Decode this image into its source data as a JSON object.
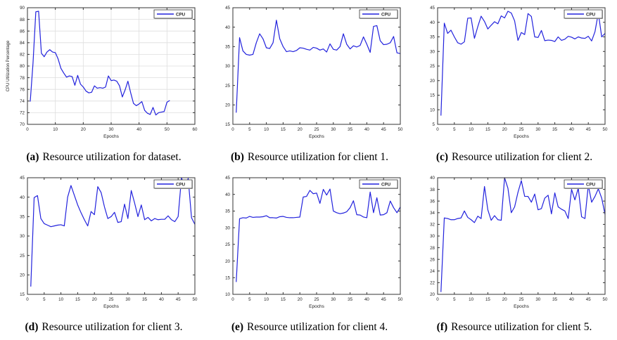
{
  "figure": {
    "legend_label": "CPU",
    "line_color": "#2222DD",
    "axis_color": "#333333",
    "grid_color": "#dedede"
  },
  "chart_data": [
    {
      "type": "line",
      "id": "a",
      "caption_label": "(a)",
      "caption_text": "Resource utilization for dataset.",
      "xlabel": "Epochs",
      "ylabel": "CPU Utilization Percentage",
      "legend": [
        "CPU"
      ],
      "legend_position": "top-right",
      "grid": true,
      "xlim": [
        0,
        60
      ],
      "ylim": [
        70,
        90
      ],
      "xticks": [
        0,
        10,
        20,
        30,
        40,
        50,
        60
      ],
      "yticks": [
        70,
        72,
        74,
        76,
        78,
        80,
        82,
        84,
        86,
        88,
        90
      ],
      "line_color": "#2222DD",
      "series": [
        {
          "name": "CPU",
          "x": [
            1,
            2,
            3,
            4,
            5,
            6,
            7,
            8,
            9,
            10,
            11,
            12,
            13,
            14,
            15,
            16,
            17,
            18,
            19,
            20,
            21,
            22,
            23,
            24,
            25,
            26,
            27,
            28,
            29,
            30,
            31,
            32,
            33,
            34,
            35,
            36,
            37,
            38,
            39,
            40,
            41,
            42,
            43,
            44,
            45,
            46,
            47,
            48,
            49,
            50,
            51
          ],
          "y": [
            73.9,
            80.5,
            89.3,
            89.4,
            82.2,
            81.6,
            82.4,
            82.8,
            82.4,
            82.3,
            81.2,
            79.6,
            78.8,
            78.1,
            78.3,
            78.2,
            76.7,
            78.4,
            76.9,
            76.4,
            75.7,
            75.4,
            75.5,
            76.6,
            76.2,
            76.3,
            76.2,
            76.4,
            78.3,
            77.5,
            77.6,
            77.4,
            76.6,
            74.7,
            75.9,
            77.4,
            75.4,
            73.6,
            73.2,
            73.5,
            73.9,
            72.4,
            71.9,
            71.7,
            72.9,
            71.6,
            72.0,
            72.1,
            72.2,
            73.8,
            74.1
          ]
        }
      ]
    },
    {
      "type": "line",
      "id": "b",
      "caption_label": "(b)",
      "caption_text": "Resource utilization for client 1.",
      "xlabel": "Epochs",
      "ylabel": "",
      "legend": [
        "CPU"
      ],
      "legend_position": "top-right",
      "grid": false,
      "xlim": [
        0,
        50
      ],
      "ylim": [
        15,
        45
      ],
      "xticks": [
        0,
        5,
        10,
        15,
        20,
        25,
        30,
        35,
        40,
        45,
        50
      ],
      "yticks": [
        15,
        20,
        25,
        30,
        35,
        40,
        45
      ],
      "line_color": "#2222DD",
      "series": [
        {
          "name": "CPU",
          "x": [
            1,
            2,
            3,
            4,
            5,
            6,
            7,
            8,
            9,
            10,
            11,
            12,
            13,
            14,
            15,
            16,
            17,
            18,
            19,
            20,
            21,
            22,
            23,
            24,
            25,
            26,
            27,
            28,
            29,
            30,
            31,
            32,
            33,
            34,
            35,
            36,
            37,
            38,
            39,
            40,
            41,
            42,
            43,
            44,
            45,
            46,
            47,
            48,
            49,
            50
          ],
          "y": [
            18.0,
            37.3,
            33.9,
            33.0,
            32.8,
            33.0,
            36.0,
            38.3,
            37.0,
            34.7,
            34.5,
            36.0,
            41.8,
            37.0,
            35.0,
            33.7,
            33.9,
            33.7,
            34.0,
            34.7,
            34.6,
            34.3,
            34.1,
            34.8,
            34.6,
            34.1,
            34.4,
            33.6,
            35.7,
            34.3,
            34.1,
            35.0,
            38.3,
            35.6,
            34.4,
            35.2,
            34.9,
            35.3,
            37.5,
            35.6,
            33.5,
            40.2,
            40.4,
            36.5,
            35.5,
            35.6,
            36.0,
            37.6,
            33.4,
            33.2
          ]
        }
      ]
    },
    {
      "type": "line",
      "id": "c",
      "caption_label": "(c)",
      "caption_text": "Resource utilization for client 2.",
      "xlabel": "Epochs",
      "ylabel": "",
      "legend": [
        "CPU"
      ],
      "legend_position": "top-right",
      "grid": false,
      "xlim": [
        0,
        50
      ],
      "ylim": [
        5,
        45
      ],
      "xticks": [
        0,
        5,
        10,
        15,
        20,
        25,
        30,
        35,
        40,
        45,
        50
      ],
      "yticks": [
        5,
        10,
        15,
        20,
        25,
        30,
        35,
        40,
        45
      ],
      "line_color": "#2222DD",
      "series": [
        {
          "name": "CPU",
          "x": [
            1,
            2,
            3,
            4,
            5,
            6,
            7,
            8,
            9,
            10,
            11,
            12,
            13,
            14,
            15,
            16,
            17,
            18,
            19,
            20,
            21,
            22,
            23,
            24,
            25,
            26,
            27,
            28,
            29,
            30,
            31,
            32,
            33,
            34,
            35,
            36,
            37,
            38,
            39,
            40,
            41,
            42,
            43,
            44,
            45,
            46,
            47,
            48,
            49,
            50
          ],
          "y": [
            8.0,
            39.7,
            36.2,
            37.3,
            35.0,
            33.0,
            32.5,
            33.3,
            41.4,
            41.5,
            34.5,
            38.5,
            42.1,
            40.3,
            37.7,
            39.0,
            40.2,
            39.5,
            42.2,
            41.5,
            43.8,
            43.2,
            40.5,
            33.8,
            36.5,
            35.8,
            43.0,
            42.0,
            35.0,
            34.8,
            37.2,
            33.7,
            33.9,
            33.8,
            33.4,
            35.0,
            33.8,
            34.2,
            35.2,
            34.9,
            34.3,
            35.0,
            34.6,
            34.5,
            35.2,
            33.6,
            36.8,
            43.2,
            35.0,
            36.2
          ]
        }
      ]
    },
    {
      "type": "line",
      "id": "d",
      "caption_label": "(d)",
      "caption_text": "Resource utilization for client 3.",
      "xlabel": "Epochs",
      "ylabel": "",
      "legend": [
        "CPU"
      ],
      "legend_position": "top-right",
      "grid": false,
      "xlim": [
        0,
        50
      ],
      "ylim": [
        15,
        45
      ],
      "xticks": [
        0,
        5,
        10,
        15,
        20,
        25,
        30,
        35,
        40,
        45,
        50
      ],
      "yticks": [
        15,
        20,
        25,
        30,
        35,
        40,
        45
      ],
      "line_color": "#2222DD",
      "series": [
        {
          "name": "CPU",
          "x": [
            1,
            2,
            3,
            4,
            5,
            6,
            7,
            8,
            9,
            10,
            11,
            12,
            13,
            14,
            15,
            16,
            17,
            18,
            19,
            20,
            21,
            22,
            23,
            24,
            25,
            26,
            27,
            28,
            29,
            30,
            31,
            32,
            33,
            34,
            35,
            36,
            37,
            38,
            39,
            40,
            41,
            42,
            43,
            44,
            45,
            46,
            47,
            48,
            49,
            50
          ],
          "y": [
            17.0,
            39.9,
            40.4,
            34.5,
            33.2,
            32.8,
            32.4,
            32.6,
            32.8,
            32.9,
            32.6,
            40.0,
            43.0,
            40.5,
            38.0,
            36.0,
            34.2,
            32.6,
            36.3,
            35.5,
            42.7,
            41.2,
            37.5,
            34.5,
            35.0,
            36.1,
            33.5,
            33.7,
            38.2,
            34.5,
            41.7,
            38.5,
            35.0,
            38.0,
            34.2,
            34.8,
            33.9,
            34.5,
            34.2,
            34.3,
            34.3,
            35.2,
            34.2,
            33.7,
            35.0,
            45.0,
            42.4,
            44.8,
            34.7,
            33.0
          ]
        }
      ]
    },
    {
      "type": "line",
      "id": "e",
      "caption_label": "(e)",
      "caption_text": "Resource utilization for client 4.",
      "xlabel": "Epochs",
      "ylabel": "",
      "legend": [
        "CPU"
      ],
      "legend_position": "top-right",
      "grid": false,
      "xlim": [
        0,
        50
      ],
      "ylim": [
        10,
        45
      ],
      "xticks": [
        0,
        5,
        10,
        15,
        20,
        25,
        30,
        35,
        40,
        45,
        50
      ],
      "yticks": [
        10,
        15,
        20,
        25,
        30,
        35,
        40,
        45
      ],
      "line_color": "#2222DD",
      "series": [
        {
          "name": "CPU",
          "x": [
            1,
            2,
            3,
            4,
            5,
            6,
            7,
            8,
            9,
            10,
            11,
            12,
            13,
            14,
            15,
            16,
            17,
            18,
            19,
            20,
            21,
            22,
            23,
            24,
            25,
            26,
            27,
            28,
            29,
            30,
            31,
            32,
            33,
            34,
            35,
            36,
            37,
            38,
            39,
            40,
            41,
            42,
            43,
            44,
            45,
            46,
            47,
            48,
            49,
            50
          ],
          "y": [
            13.7,
            32.7,
            33.0,
            32.9,
            33.4,
            33.1,
            33.2,
            33.2,
            33.3,
            33.6,
            33.0,
            33.0,
            32.9,
            33.3,
            33.4,
            33.1,
            33.0,
            33.0,
            33.1,
            33.2,
            39.2,
            39.4,
            41.2,
            40.2,
            40.4,
            37.3,
            41.5,
            39.8,
            41.6,
            35.0,
            34.5,
            34.2,
            34.4,
            34.8,
            36.0,
            38.1,
            33.9,
            33.8,
            33.2,
            33.0,
            40.7,
            34.5,
            39.0,
            33.8,
            33.9,
            34.5,
            38.0,
            36.0,
            34.5,
            36.2
          ]
        }
      ]
    },
    {
      "type": "line",
      "id": "f",
      "caption_label": "(f)",
      "caption_text": "Resource utilization for client 5.",
      "xlabel": "Epochs",
      "ylabel": "",
      "legend": [
        "CPU"
      ],
      "legend_position": "top-right",
      "grid": false,
      "xlim": [
        0,
        50
      ],
      "ylim": [
        20,
        40
      ],
      "xticks": [
        0,
        5,
        10,
        15,
        20,
        25,
        30,
        35,
        40,
        45,
        50
      ],
      "yticks": [
        20,
        22,
        24,
        26,
        28,
        30,
        32,
        34,
        36,
        38,
        40
      ],
      "line_color": "#2222DD",
      "series": [
        {
          "name": "CPU",
          "x": [
            1,
            2,
            3,
            4,
            5,
            6,
            7,
            8,
            9,
            10,
            11,
            12,
            13,
            14,
            15,
            16,
            17,
            18,
            19,
            20,
            21,
            22,
            23,
            24,
            25,
            26,
            27,
            28,
            29,
            30,
            31,
            32,
            33,
            34,
            35,
            36,
            37,
            38,
            39,
            40,
            41,
            42,
            43,
            44,
            45,
            46,
            47,
            48,
            49,
            50
          ],
          "y": [
            20.4,
            33.1,
            33.0,
            32.8,
            32.8,
            33.0,
            33.1,
            34.3,
            33.2,
            32.8,
            32.3,
            33.4,
            33.0,
            38.5,
            34.5,
            32.7,
            33.5,
            32.8,
            32.7,
            40.0,
            38.2,
            34.0,
            35.0,
            37.5,
            39.5,
            36.8,
            36.8,
            35.8,
            37.2,
            34.5,
            34.7,
            36.5,
            37.0,
            33.8,
            37.4,
            35.0,
            34.6,
            34.3,
            33.0,
            38.0,
            36.2,
            38.2,
            33.3,
            33.0,
            38.7,
            35.8,
            36.8,
            38.1,
            36.5,
            33.7
          ]
        }
      ]
    }
  ]
}
